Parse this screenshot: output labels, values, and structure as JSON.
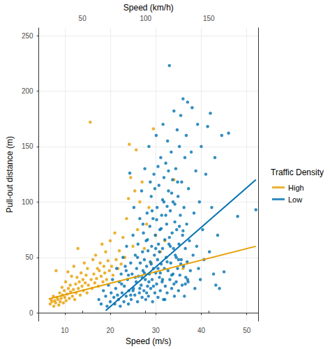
{
  "chart_data": {
    "type": "scatter",
    "xlabel": "Speed (m/s)",
    "x2label": "Speed (km/h)",
    "ylabel": "Pull-out distance (m)",
    "xlim": [
      4.3,
      52.5
    ],
    "xticks": [
      10,
      20,
      30,
      40,
      50
    ],
    "x2lim": [
      15.48,
      189
    ],
    "x2ticks": [
      50,
      100,
      150
    ],
    "ylim": [
      -7.5,
      257
    ],
    "yticks": [
      0,
      50,
      100,
      150,
      200,
      250
    ],
    "grid": true,
    "legend": "right",
    "legend_title": "Traffic Density",
    "marker": "circle",
    "series": [
      {
        "name": "High",
        "color": "#E69F00",
        "x": [
          6.8,
          7,
          7.2,
          7.5,
          7.6,
          7.8,
          8,
          8.1,
          8.3,
          8.5,
          8.7,
          8.9,
          9,
          9.2,
          9.4,
          9.5,
          9.7,
          9.9,
          10,
          10.2,
          10.3,
          10.5,
          10.7,
          10.8,
          11,
          11.2,
          11.3,
          11.5,
          11.7,
          11.9,
          12,
          12.2,
          12.4,
          12.5,
          12.7,
          12.9,
          13,
          13.2,
          13.4,
          13.6,
          13.8,
          14,
          14.1,
          14.3,
          14.5,
          14.7,
          14.9,
          15,
          15.2,
          15.6,
          15.8,
          16,
          16.2,
          16.4,
          16.6,
          16.8,
          17,
          17.2,
          17.4,
          17.6,
          17.8,
          18,
          18.2,
          18.4,
          18.6,
          18.8,
          19,
          19.2,
          19.5,
          19.8,
          20,
          20.3,
          20.6,
          21,
          21.3,
          21.7,
          22,
          22.4,
          22.8,
          23.2,
          23.6,
          24,
          24.2,
          24.5,
          25,
          25.4,
          25.7,
          26,
          26.5,
          27,
          27.5,
          28,
          28.5,
          29,
          29.5,
          30,
          31,
          32,
          34,
          36
        ],
        "values": [
          8,
          12,
          10,
          15,
          6,
          11,
          9,
          38,
          14,
          12,
          7,
          18,
          10,
          13,
          23,
          16,
          9,
          20,
          14,
          28,
          11,
          17,
          37,
          22,
          13,
          25,
          19,
          33,
          15,
          21,
          42,
          12,
          26,
          18,
          32,
          58,
          22,
          28,
          16,
          36,
          24,
          30,
          20,
          45,
          27,
          34,
          18,
          40,
          25,
          172,
          30,
          22,
          48,
          35,
          27,
          52,
          31,
          40,
          24,
          38,
          45,
          33,
          62,
          28,
          42,
          36,
          55,
          30,
          47,
          38,
          65,
          42,
          34,
          72,
          48,
          40,
          56,
          44,
          68,
          50,
          85,
          103,
          152,
          122,
          60,
          110,
          147,
          75,
          100,
          118,
          58,
          80,
          95,
          45,
          166,
          70,
          55,
          65,
          120,
          40
        ],
        "trend_x": [
          6.5,
          52
        ],
        "trend_values": [
          12.5,
          60
        ]
      },
      {
        "name": "Low",
        "color": "#0072B2",
        "x": [
          17.5,
          18,
          18.5,
          19,
          19.3,
          19.6,
          20,
          20.2,
          20.5,
          20.8,
          21,
          21.2,
          21.4,
          21.6,
          21.8,
          22,
          22.2,
          22.4,
          22.6,
          22.8,
          23,
          23.1,
          23.3,
          23.5,
          23.6,
          23.8,
          24,
          24.1,
          24.3,
          24.5,
          24.6,
          24.8,
          25,
          25.1,
          25.2,
          25.4,
          25.5,
          25.7,
          25.8,
          26,
          26.1,
          26.2,
          26.4,
          26.5,
          26.6,
          26.8,
          26.9,
          27,
          27.1,
          27.2,
          27.3,
          27.4,
          27.5,
          27.6,
          27.7,
          27.8,
          27.9,
          28,
          28.1,
          28.2,
          28.3,
          28.4,
          28.5,
          28.6,
          28.7,
          28.8,
          28.9,
          29,
          29.1,
          29.2,
          29.3,
          29.4,
          29.5,
          29.6,
          29.7,
          29.8,
          29.9,
          30,
          30.1,
          30.2,
          30.3,
          30.4,
          30.5,
          30.6,
          30.7,
          30.8,
          30.9,
          31,
          31.1,
          31.2,
          31.3,
          31.4,
          31.5,
          31.6,
          31.7,
          31.8,
          31.9,
          32,
          32.1,
          32.2,
          32.3,
          32.4,
          32.5,
          32.6,
          32.7,
          32.8,
          32.9,
          33,
          33.1,
          33.2,
          33.3,
          33.4,
          33.5,
          33.6,
          33.7,
          33.8,
          33.9,
          34,
          34.1,
          34.2,
          34.3,
          34.4,
          34.5,
          34.6,
          34.7,
          34.8,
          34.9,
          35,
          35.1,
          35.2,
          35.3,
          35.4,
          35.5,
          35.6,
          35.7,
          35.8,
          35.9,
          36,
          36.1,
          36.2,
          36.3,
          36.4,
          36.5,
          36.6,
          36.7,
          36.8,
          36.9,
          37,
          37.1,
          37.2,
          37.4,
          37.6,
          37.8,
          38,
          38.2,
          38.4,
          38.6,
          38.8,
          39,
          39.2,
          39.4,
          39.6,
          39.8,
          40,
          40.3,
          40.6,
          41,
          41.4,
          41.8,
          42,
          42.3,
          42.7,
          43,
          43.2,
          43.6,
          44,
          44.5,
          45,
          46,
          48,
          52,
          24,
          25,
          26,
          27,
          28,
          29,
          30,
          31,
          32,
          33,
          34,
          35,
          36,
          37,
          22.5,
          23.5,
          24.5,
          25.5,
          26.5,
          27.5,
          28.5,
          29.5,
          30.5,
          31.5,
          32.5,
          33.5,
          34.5,
          35.5,
          36.5,
          27.2,
          28.2,
          29.2,
          30.2,
          31.2,
          32.2,
          33.2,
          34.2,
          35.2,
          30.8,
          29.8,
          31.8,
          32.8,
          33.8,
          34.8,
          31.5,
          30.5,
          32.5,
          33.5,
          28.8
        ],
        "values": [
          12,
          8,
          20,
          15,
          6,
          25,
          10,
          18,
          30,
          14,
          8,
          22,
          40,
          16,
          12,
          28,
          6,
          35,
          18,
          50,
          10,
          24,
          42,
          15,
          60,
          30,
          8,
          20,
          126,
          45,
          12,
          35,
          70,
          22,
          95,
          16,
          52,
          28,
          40,
          10,
          62,
          33,
          18,
          85,
          45,
          25,
          110,
          14,
          55,
          38,
          72,
          20,
          48,
          130,
          30,
          12,
          65,
          42,
          90,
          24,
          56,
          15,
          150,
          35,
          78,
          46,
          22,
          105,
          60,
          30,
          10,
          85,
          40,
          125,
          52,
          18,
          70,
          36,
          160,
          26,
          95,
          48,
          14,
          62,
          115,
          32,
          75,
          20,
          140,
          44,
          88,
          28,
          58,
          170,
          12,
          100,
          40,
          66,
          24,
          135,
          50,
          80,
          18,
          155,
          38,
          110,
          62,
          223,
          30,
          92,
          45,
          145,
          22,
          72,
          120,
          35,
          58,
          182,
          15,
          98,
          52,
          130,
          28,
          75,
          165,
          40,
          105,
          20,
          62,
          150,
          34,
          88,
          178,
          48,
          118,
          25,
          70,
          193,
          42,
          95,
          15,
          140,
          58,
          32,
          160,
          80,
          46,
          190,
          28,
          112,
          65,
          38,
          145,
          185,
          52,
          90,
          22,
          128,
          60,
          170,
          40,
          100,
          30,
          150,
          75,
          48,
          125,
          168,
          55,
          180,
          95,
          35,
          140,
          25,
          70,
          22,
          160,
          37,
          162,
          87,
          93,
          34,
          20,
          50,
          32,
          18,
          44,
          58,
          36,
          12,
          68,
          26,
          48,
          74,
          30,
          26,
          38,
          16,
          32,
          22,
          36,
          28,
          24,
          40,
          30,
          46,
          34,
          50,
          44,
          26,
          80,
          66,
          92,
          84,
          76,
          88,
          60,
          82,
          78,
          55,
          112,
          122,
          128,
          100,
          118,
          102,
          132,
          96,
          108,
          118
        ],
        "trend_x": [
          19,
          52
        ],
        "trend_values": [
          2,
          120
        ]
      }
    ]
  }
}
